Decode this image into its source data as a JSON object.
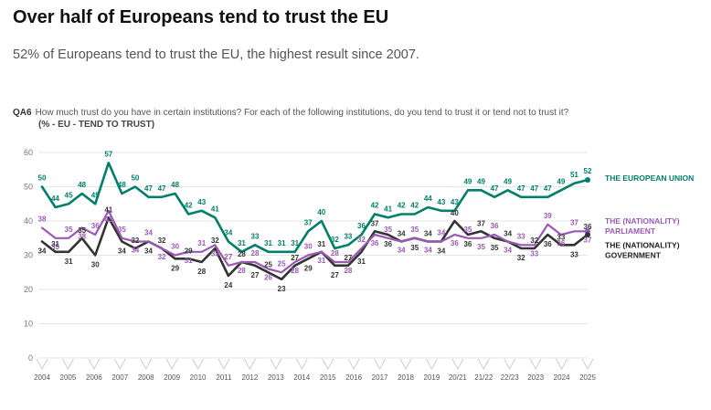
{
  "headline": "Over half of Europeans tend to trust the EU",
  "subheadline": "52% of Europeans tend to trust the EU, the highest result since 2007.",
  "question": {
    "code": "QA6",
    "text": "How much trust do you have in certain institutions? For each of the following institutions, do you tend to trust it or tend not to trust it?",
    "subtitle": "(% - EU - TEND TO TRUST)"
  },
  "chart_data": {
    "type": "line",
    "title": "How much trust do you have in certain institutions? (% - EU - TEND TO TRUST)",
    "ylim": [
      0,
      60
    ],
    "yticks": [
      "0",
      "10",
      "20",
      "30",
      "40",
      "50",
      "60"
    ],
    "xlabel": "",
    "ylabel": "",
    "grid": true,
    "legend": "right",
    "x_ticks": [
      "2004",
      "2005",
      "2006",
      "2007",
      "2008",
      "2009",
      "2010",
      "2011",
      "2012",
      "2013",
      "2014",
      "2015",
      "2016",
      "2017",
      "2018",
      "2019",
      "20/21",
      "21/22",
      "22/23",
      "2023",
      "2024",
      "2025"
    ],
    "series": [
      {
        "name": "THE EUROPEAN UNION",
        "color": "#00806a",
        "values": [
          50,
          44,
          45,
          48,
          45,
          57,
          48,
          50,
          47,
          47,
          48,
          42,
          43,
          41,
          34,
          31,
          33,
          31,
          31,
          31,
          37,
          40,
          32,
          33,
          36,
          42,
          41,
          42,
          42,
          44,
          43,
          43,
          49,
          49,
          47,
          49,
          47,
          47,
          47,
          49,
          51,
          52
        ]
      },
      {
        "name": "THE (NATIONALITY) PARLIAMENT",
        "color": "#9b59b6",
        "values": [
          38,
          35,
          35,
          38,
          36,
          43,
          35,
          34,
          34,
          32,
          30,
          31,
          31,
          33,
          27,
          28,
          28,
          26,
          25,
          28,
          30,
          31,
          28,
          28,
          32,
          36,
          35,
          34,
          35,
          34,
          34,
          36,
          35,
          35,
          36,
          34,
          33,
          33,
          39,
          36,
          37,
          37
        ]
      },
      {
        "name": "THE (NATIONALITY) GOVERNMENT",
        "color": "#333333",
        "values": [
          34,
          31,
          31,
          35,
          30,
          41,
          34,
          32,
          34,
          32,
          29,
          29,
          28,
          32,
          24,
          28,
          27,
          25,
          23,
          27,
          29,
          31,
          27,
          27,
          31,
          37,
          36,
          34,
          35,
          34,
          34,
          40,
          36,
          37,
          35,
          34,
          32,
          32,
          36,
          33,
          33,
          36
        ]
      }
    ]
  }
}
